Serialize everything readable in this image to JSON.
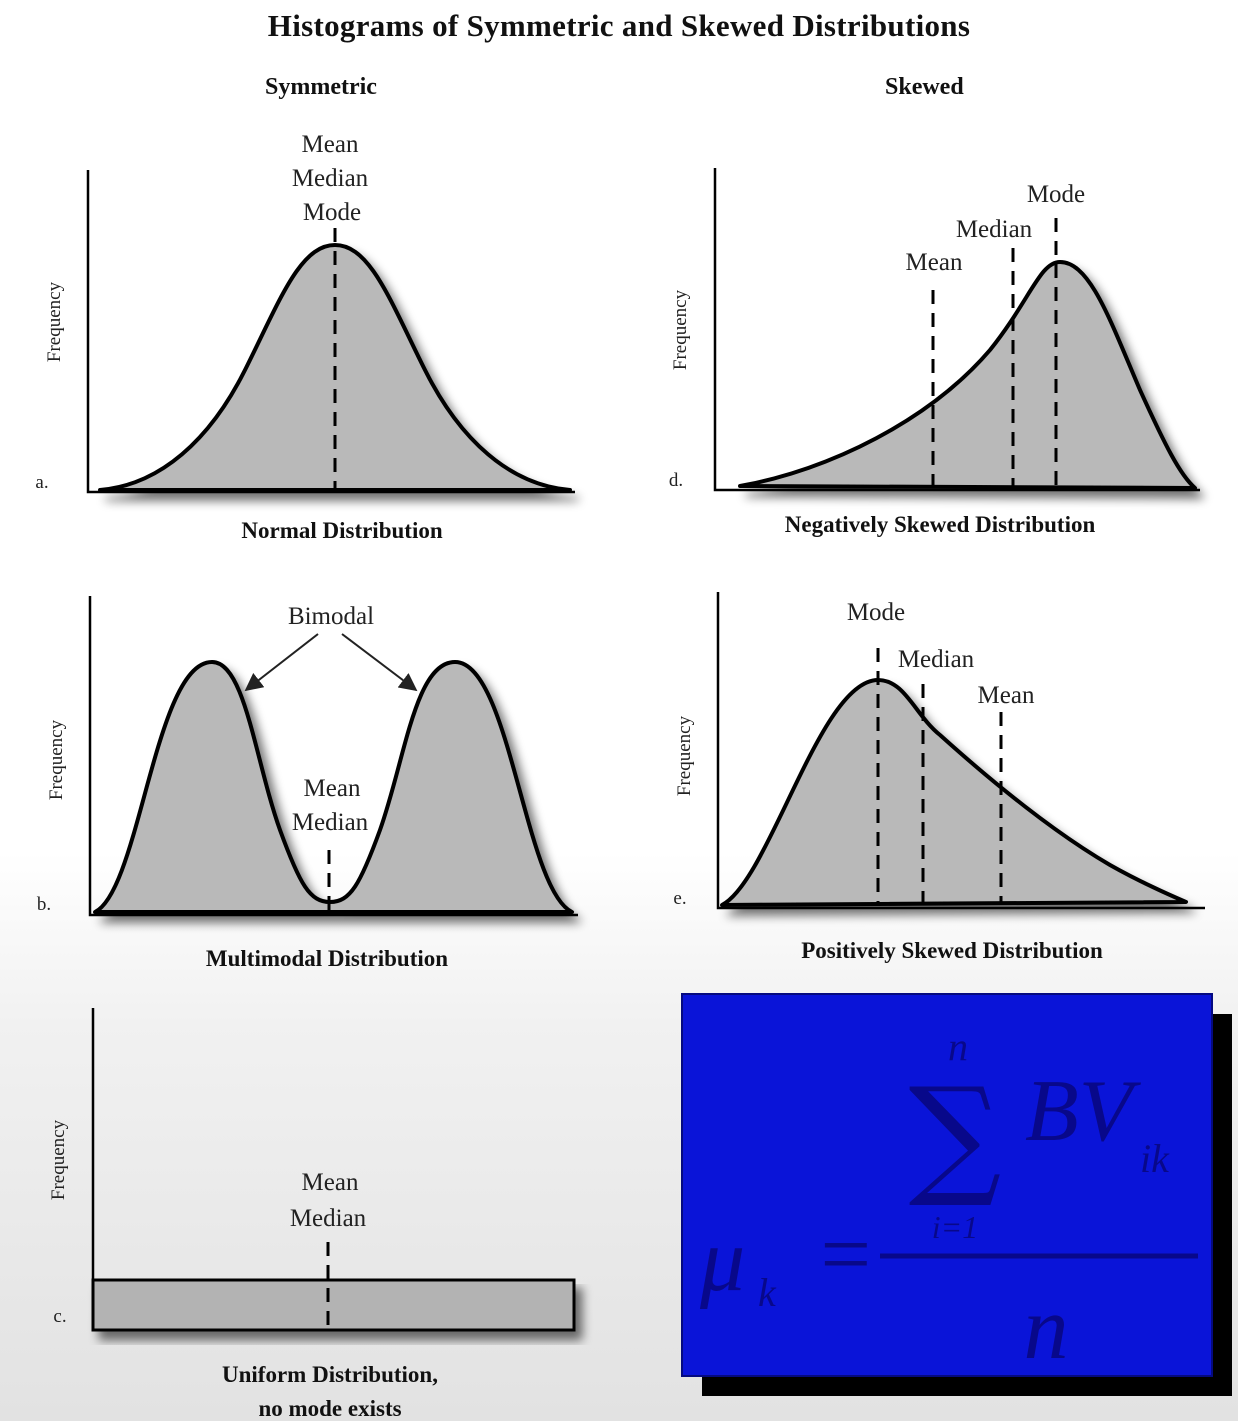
{
  "title": "Histograms of Symmetric and Skewed Distributions",
  "columns": {
    "left": "Symmetric",
    "right": "Skewed"
  },
  "axis_label": "Frequency",
  "panels": {
    "a": {
      "letter": "a.",
      "annotation": [
        "Mean",
        "Median",
        "Mode"
      ],
      "caption": "Normal Distribution"
    },
    "b": {
      "letter": "b.",
      "peak_label": "Bimodal",
      "annotation": [
        "Mean",
        "Median"
      ],
      "caption": "Multimodal Distribution"
    },
    "c": {
      "letter": "c.",
      "annotation": [
        "Mean",
        "Median"
      ],
      "caption": [
        "Uniform Distribution,",
        "no mode exists"
      ]
    },
    "d": {
      "letter": "d.",
      "mean": "Mean",
      "median": "Median",
      "mode": "Mode",
      "caption": "Negatively Skewed Distribution"
    },
    "e": {
      "letter": "e.",
      "mode": "Mode",
      "median": "Median",
      "mean": "Mean",
      "caption": "Positively Skewed Distribution"
    }
  },
  "formula": {
    "upper": "n",
    "summand": "BV",
    "summand_sub": "ik",
    "lower": "i=1",
    "lhs": "μ",
    "lhs_sub": "k",
    "equals": "=",
    "denominator": "n",
    "box_color": "#0a14d8"
  },
  "colors": {
    "curve_fill": "#b9b9b9",
    "stroke": "#000000"
  }
}
